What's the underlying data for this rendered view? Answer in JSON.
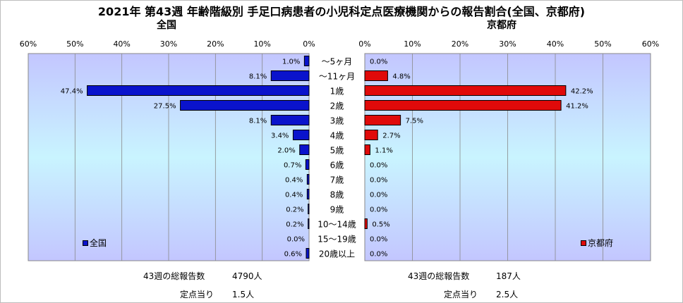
{
  "title": "2021年 第43週 年齢階級別 手足口病患者の小児科定点医療機関からの報告割合(全国、京都府)",
  "colors": {
    "national": "#0a13cc",
    "kyoto": "#e00a0a",
    "plot_bg": "#c8ccff"
  },
  "chart_data": {
    "type": "bar",
    "categories": [
      "～5ヶ月",
      "～11ヶ月",
      "1歳",
      "2歳",
      "3歳",
      "4歳",
      "5歳",
      "6歳",
      "7歳",
      "8歳",
      "9歳",
      "10～14歳",
      "15～19歳",
      "20歳以上"
    ],
    "series": [
      {
        "name": "全国",
        "values": [
          1.0,
          8.1,
          47.4,
          27.5,
          8.1,
          3.4,
          2.0,
          0.7,
          0.4,
          0.4,
          0.2,
          0.2,
          0.0,
          0.6
        ]
      },
      {
        "name": "京都府",
        "values": [
          0.0,
          4.8,
          42.2,
          41.2,
          7.5,
          2.7,
          1.1,
          0.0,
          0.0,
          0.0,
          0.0,
          0.5,
          0.0,
          0.0
        ]
      }
    ],
    "panel_titles": [
      "全国",
      "京都府"
    ],
    "ticks": [
      "0%",
      "10%",
      "20%",
      "30%",
      "40%",
      "50%",
      "60%"
    ],
    "xlim": [
      0,
      60
    ],
    "orientation": "horizontal, mirrored (national left, Kyoto right)",
    "legend_placement": "bottom-left / bottom-right"
  },
  "footer": {
    "national_total_label": "43週の総報告数",
    "national_total_value": "4790人",
    "national_per_label": "定点当り",
    "national_per_value": "1.5人",
    "kyoto_total_label": "43週の総報告数",
    "kyoto_total_value": "187人",
    "kyoto_per_label": "定点当り",
    "kyoto_per_value": "2.5人"
  }
}
